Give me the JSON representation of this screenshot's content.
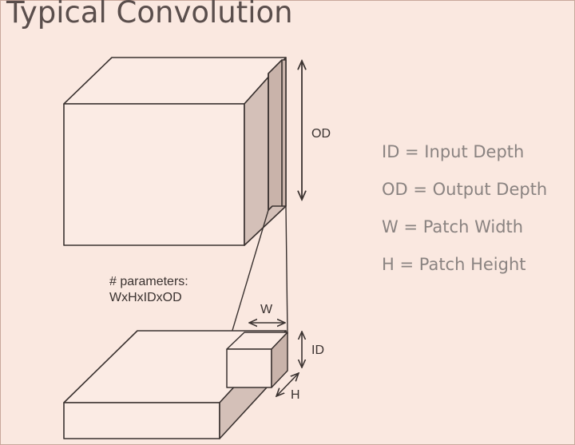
{
  "title": "Typical Convolution",
  "labels": {
    "od": "OD",
    "w": "W",
    "id": "ID",
    "h": "H",
    "params_line1": "# parameters:",
    "params_line2": "WxHxIDxOD"
  },
  "legend": [
    "ID = Input Depth",
    "OD = Output Depth",
    "W = Patch Width",
    "H = Patch Height"
  ],
  "colors": {
    "background": "#fae8e0",
    "block_face": "#fbebe4",
    "block_side": "#d4c0b8",
    "stroke": "#3a3230"
  }
}
